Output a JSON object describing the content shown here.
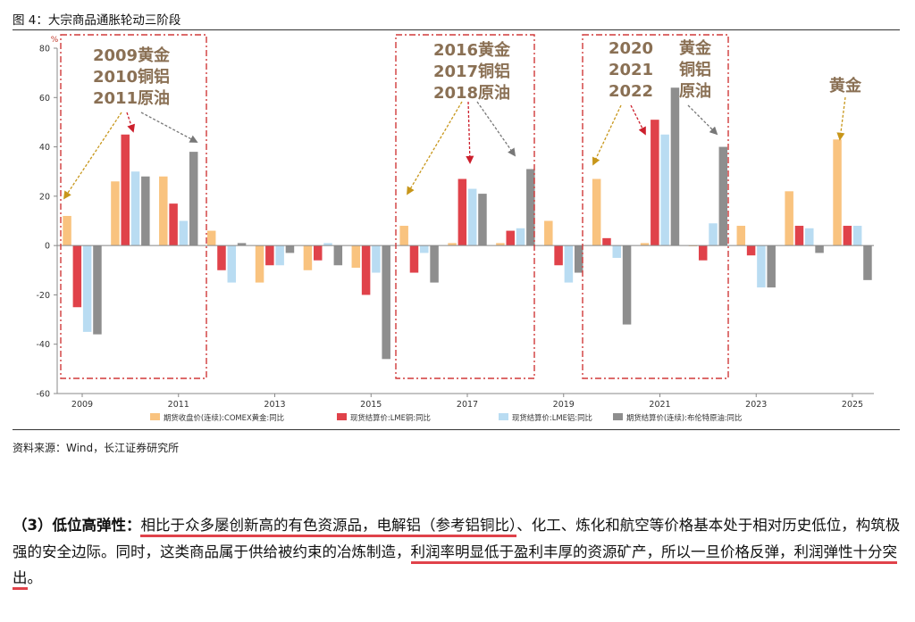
{
  "figure_title": "图 4：大宗商品通胀轮动三阶段",
  "source": "资料来源：Wind，长江证券研究所",
  "paragraph": {
    "lead": "（3）低位高弹性：",
    "s1": "相比于众多屡创新高的有色资源品，电解铝（参考铝铜比）",
    "s2": "、化工、炼化和航空等价格基本处于相对历史低位，构筑极强的安全边际。同时，这类商品属于供给被约束的冶炼制造，",
    "s3": "利润率明显低于盈利丰厚的资源矿产，所以一旦价格反弹，利润弹性十分突出",
    "s4": "。"
  },
  "chart_data": {
    "type": "bar",
    "y_unit": "%",
    "ylim": [
      -60,
      80
    ],
    "yticks": [
      80,
      60,
      40,
      20,
      0,
      -20,
      -40,
      -60
    ],
    "categories": [
      "2009",
      "2010",
      "2011",
      "2012",
      "2013",
      "2014",
      "2015",
      "2016",
      "2017",
      "2018",
      "2019",
      "2020",
      "2021",
      "2022",
      "2023",
      "2024",
      "2025"
    ],
    "xtick_labels": [
      "2009",
      "2011",
      "2013",
      "2015",
      "2017",
      "2019",
      "2021",
      "2023",
      "2025"
    ],
    "series": [
      {
        "name": "期货收盘价(连续):COMEX黄金:同比",
        "color": "#f9c37f",
        "values": [
          12,
          26,
          28,
          6,
          -15,
          -10,
          -9,
          8,
          1,
          1,
          10,
          27,
          1,
          0,
          8,
          22,
          43
        ]
      },
      {
        "name": "现货结算价:LME铜:同比",
        "color": "#e0424a",
        "values": [
          -25,
          45,
          17,
          -10,
          -8,
          -6,
          -20,
          -11,
          27,
          6,
          -8,
          3,
          51,
          -6,
          -4,
          8,
          8
        ]
      },
      {
        "name": "现货结算价:LME铝:同比",
        "color": "#b9dcf2",
        "values": [
          -35,
          30,
          10,
          -15,
          -8,
          1,
          -11,
          -3,
          23,
          7,
          -15,
          -5,
          45,
          9,
          -17,
          7,
          8
        ]
      },
      {
        "name": "期货结算价(连续):布伦特原油:同比",
        "color": "#8e8e8e",
        "values": [
          -36,
          28,
          38,
          1,
          -3,
          -8,
          -46,
          -15,
          21,
          31,
          -11,
          -32,
          64,
          40,
          -17,
          -3,
          -14
        ]
      }
    ],
    "annotations": [
      {
        "lines": [
          "2009黄金",
          "2010铜铝",
          "2011原油"
        ]
      },
      {
        "lines": [
          "2016黄金",
          "2017铜铝",
          "2018原油"
        ]
      },
      {
        "lines": [
          "2020",
          "2021",
          "2022"
        ]
      },
      {
        "lines": [
          "黄金",
          "铜铝",
          "原油"
        ]
      },
      {
        "lines": [
          "黄金"
        ]
      }
    ]
  }
}
